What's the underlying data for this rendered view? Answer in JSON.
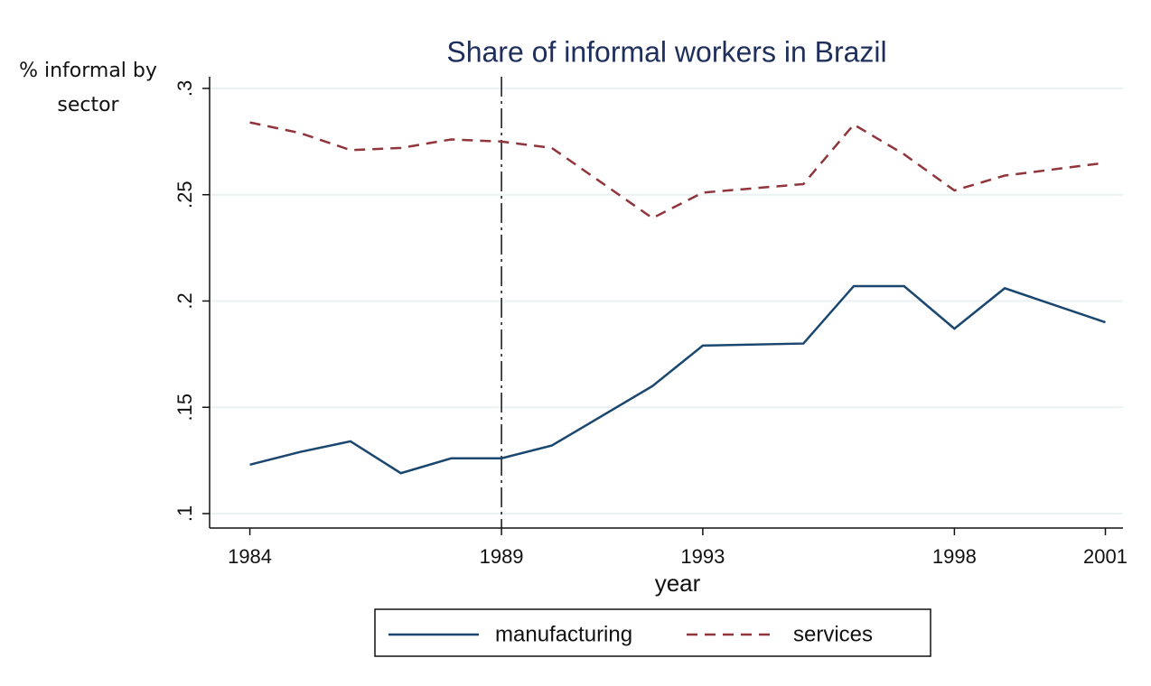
{
  "chart_data": {
    "type": "line",
    "title": "Share of informal workers in Brazil",
    "ylabel": "% informal by sector",
    "xlabel": "year",
    "x": [
      1984,
      1985,
      1986,
      1987,
      1988,
      1989,
      1990,
      1992,
      1993,
      1995,
      1996,
      1997,
      1998,
      1999,
      2001
    ],
    "series": [
      {
        "name": "manufacturing",
        "color": "#1a476f",
        "dash": "solid",
        "values": [
          0.123,
          0.129,
          0.134,
          0.119,
          0.126,
          0.126,
          0.132,
          0.16,
          0.179,
          0.18,
          0.207,
          0.207,
          0.187,
          0.206,
          0.19
        ]
      },
      {
        "name": "services",
        "color": "#90353b",
        "dash": "dashed",
        "values": [
          0.284,
          0.279,
          0.271,
          0.272,
          0.276,
          0.275,
          0.272,
          0.239,
          0.251,
          0.255,
          0.283,
          0.269,
          0.252,
          0.259,
          0.265
        ]
      }
    ],
    "xline": 1989,
    "xlim": [
      1983.2,
      2001.35
    ],
    "xticks": [
      1984,
      1989,
      1993,
      1998,
      2001
    ],
    "ylim": [
      0.0932,
      0.3055
    ],
    "yticks": [
      {
        "value": 0.1,
        "label": ".1"
      },
      {
        "value": 0.15,
        "label": ".15"
      },
      {
        "value": 0.2,
        "label": ".2"
      },
      {
        "value": 0.25,
        "label": ".25"
      },
      {
        "value": 0.3,
        "label": ".3"
      }
    ],
    "grid": true,
    "legend": "bottom"
  }
}
